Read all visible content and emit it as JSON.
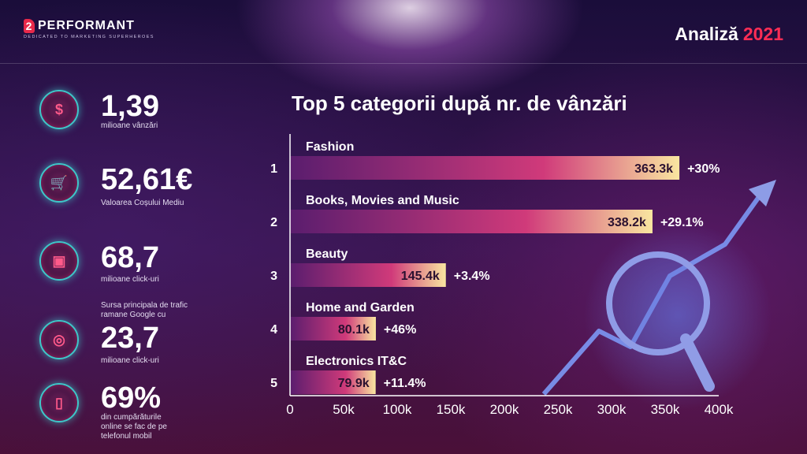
{
  "header": {
    "logo_text": "PERFORMANT",
    "logo_mark": "2",
    "logo_tagline": "DEDICATED TO MARKETING SUPERHEROES",
    "title_word": "Analiză",
    "title_year": "2021"
  },
  "stats": [
    {
      "icon": "dollar-coin-icon",
      "value": "1,39",
      "label": "milioane vânzări"
    },
    {
      "icon": "shopping-cart-icon",
      "value": "52,61€",
      "label": "Valoarea Coșului Mediu"
    },
    {
      "icon": "laptop-click-icon",
      "value": "68,7",
      "label": "milioane click-uri"
    },
    {
      "icon": "search-traffic-icon",
      "pre_label": "Sursa principala de trafic ramane Google cu",
      "value": "23,7",
      "label": "milioane click-uri"
    },
    {
      "icon": "mobile-phone-icon",
      "value": "69%",
      "label": "din cumpărăturile online se fac de pe telefonul mobil"
    }
  ],
  "chart_data": {
    "type": "bar",
    "orientation": "horizontal",
    "title": "Top 5 categorii după nr. de vânzări",
    "ranks": [
      "1",
      "2",
      "3",
      "4",
      "5"
    ],
    "categories": [
      "Fashion",
      "Books, Movies and Music",
      "Beauty",
      "Home and Garden",
      "Electronics IT&C"
    ],
    "values": [
      363300,
      338200,
      145400,
      80100,
      79900
    ],
    "value_labels": [
      "363.3k",
      "338.2k",
      "145.4k",
      "80.1k",
      "79.9k"
    ],
    "growth_labels": [
      "+30%",
      "+29.1%",
      "+3.4%",
      "+46%",
      "+11.4%"
    ],
    "xlim": [
      0,
      400000
    ],
    "x_ticks": [
      0,
      50000,
      100000,
      150000,
      200000,
      250000,
      300000,
      350000,
      400000
    ],
    "x_tick_labels": [
      "0",
      "50k",
      "100k",
      "150k",
      "200k",
      "250k",
      "300k",
      "350k",
      "400k"
    ],
    "colors": {
      "bar_start": "#5a1d6e",
      "bar_mid": "#d03a7a",
      "bar_end": "#f9e6a0",
      "axis": "#ffffff"
    }
  }
}
